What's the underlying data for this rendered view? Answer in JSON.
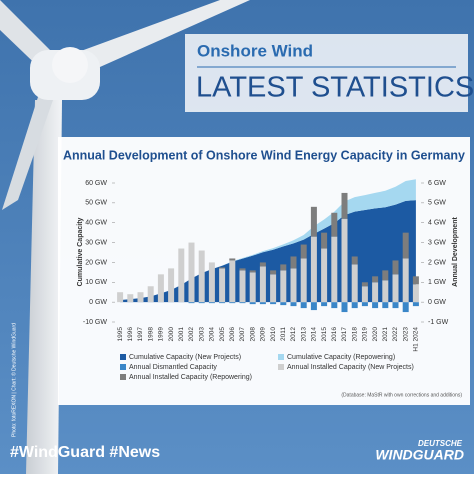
{
  "header": {
    "subtitle": "Onshore Wind",
    "title": "LATEST STATISTICS"
  },
  "photo_credit": "Photo: fotoREXON | Chart: © Deutsche WindGuard",
  "chart_data": {
    "type": "combo",
    "title": "Annual Development of Onshore Wind Energy Capacity in Germany",
    "y_label": "Cumulative Capacity",
    "y2_label": "Annual Development",
    "categories": [
      "1995",
      "1996",
      "1997",
      "1998",
      "1999",
      "2000",
      "2001",
      "2002",
      "2003",
      "2004",
      "2005",
      "2006",
      "2007",
      "2008",
      "2009",
      "2010",
      "2011",
      "2012",
      "2013",
      "2014",
      "2015",
      "2016",
      "2017",
      "2018",
      "2019",
      "2020",
      "2021",
      "2022",
      "2023",
      "H1 2024"
    ],
    "ylim": [
      -10,
      60
    ],
    "yticks": [
      {
        "value": 60,
        "label": "60 GW"
      },
      {
        "value": 50,
        "label": "50 GW"
      },
      {
        "value": 40,
        "label": "40 GW"
      },
      {
        "value": 30,
        "label": "30 GW"
      },
      {
        "value": 20,
        "label": "20 GW"
      },
      {
        "value": 10,
        "label": "10 GW"
      },
      {
        "value": 0,
        "label": "0 GW"
      },
      {
        "value": -10,
        "label": "-10 GW"
      }
    ],
    "y2lim": [
      -1,
      6
    ],
    "y2ticks": [
      {
        "value": 6,
        "label": "6 GW"
      },
      {
        "value": 5,
        "label": "5 GW"
      },
      {
        "value": 4,
        "label": "4 GW"
      },
      {
        "value": 3,
        "label": "3 GW"
      },
      {
        "value": 2,
        "label": "2 GW"
      },
      {
        "value": 1,
        "label": "1 GW"
      },
      {
        "value": 0,
        "label": "0 GW"
      },
      {
        "value": -1,
        "label": "-1 GW"
      }
    ],
    "grid": false,
    "series": [
      {
        "name": "Cumulative Capacity  (New Projects)",
        "kind": "area",
        "stack": "cumulative",
        "axis": "y",
        "color": "#1c5aa3",
        "values": [
          1.1,
          1.5,
          2.0,
          2.9,
          4.4,
          6.1,
          8.7,
          11.9,
          14.6,
          16.6,
          18.3,
          20.4,
          21.9,
          23.4,
          25.1,
          26.4,
          28.1,
          29.6,
          31.5,
          34.4,
          37.0,
          39.8,
          43.8,
          45.6,
          46.4,
          47.2,
          47.8,
          49.1,
          51.0,
          51.4
        ]
      },
      {
        "name": "Cumulative Capacity  (Repowering)",
        "kind": "area",
        "stack": "cumulative",
        "axis": "y",
        "color": "#a5d8f0",
        "values": [
          0,
          0,
          0,
          0,
          0,
          0,
          0,
          0,
          0,
          0,
          0.1,
          0.2,
          0.3,
          0.4,
          0.6,
          0.8,
          1.0,
          1.6,
          2.3,
          3.8,
          4.6,
          5.7,
          6.9,
          7.3,
          7.5,
          7.8,
          8.3,
          9.0,
          10.0,
          10.5
        ]
      },
      {
        "name": "Annual Dismantled Capacity",
        "kind": "bar",
        "stack": "dismantled",
        "axis": "y2",
        "color": "#3a86c8",
        "values": [
          0,
          0,
          0,
          0,
          0,
          0,
          0,
          -0.05,
          -0.05,
          -0.05,
          -0.05,
          -0.05,
          -0.05,
          -0.1,
          -0.1,
          -0.1,
          -0.15,
          -0.2,
          -0.3,
          -0.4,
          -0.2,
          -0.3,
          -0.5,
          -0.3,
          -0.2,
          -0.3,
          -0.3,
          -0.3,
          -0.5,
          -0.2
        ]
      },
      {
        "name": "Annual Installed Capacity  (New Projects)",
        "kind": "bar",
        "stack": "annual",
        "axis": "y2",
        "color": "#cfcfcf",
        "values": [
          0.5,
          0.4,
          0.5,
          0.8,
          1.4,
          1.7,
          2.7,
          3.0,
          2.6,
          2.0,
          1.7,
          2.1,
          1.6,
          1.5,
          1.8,
          1.4,
          1.6,
          1.7,
          2.2,
          3.3,
          2.7,
          3.3,
          4.2,
          1.9,
          0.8,
          1.0,
          1.1,
          1.4,
          2.2,
          0.9
        ]
      },
      {
        "name": "Annual Installed Capacity  (Repowering)",
        "kind": "bar",
        "stack": "annual",
        "axis": "y2",
        "color": "#7d7d7d",
        "values": [
          0,
          0,
          0,
          0,
          0,
          0,
          0,
          0,
          0,
          0,
          0.05,
          0.1,
          0.1,
          0.1,
          0.2,
          0.2,
          0.3,
          0.6,
          0.7,
          1.5,
          0.8,
          1.2,
          1.3,
          0.4,
          0.2,
          0.3,
          0.5,
          0.7,
          1.3,
          0.4
        ]
      }
    ],
    "source": "(Database: MaStR with own corrections and additions)"
  },
  "footer": {
    "hashtags": "#WindGuard  #News",
    "logo_top": "DEUTSCHE",
    "logo_bottom": "WINDGUARD"
  }
}
